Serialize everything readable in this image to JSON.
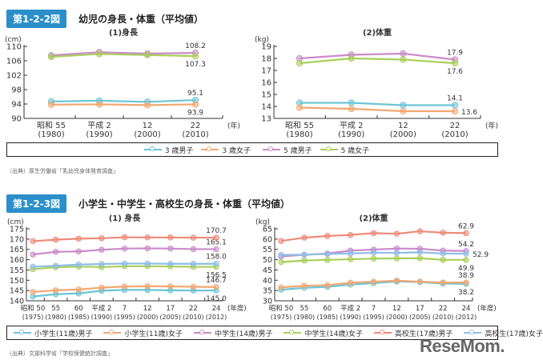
{
  "figure1": {
    "badge": "第1-2-2図",
    "title": "幼児の身長・体重（平均値）",
    "source": "（出典）厚生労働省「乳幼児身体発育調査」",
    "legend": [
      {
        "label": "3 歳男子",
        "color": "#6cc5d6"
      },
      {
        "label": "3 歳女子",
        "color": "#f2a872"
      },
      {
        "label": "5 歳男子",
        "color": "#c98bc9"
      },
      {
        "label": "5 歳女子",
        "color": "#a9cf5a"
      }
    ]
  },
  "figure2": {
    "badge": "第1-2-3図",
    "title": "小学生・中学生・高校生の身長・体重（平均値）",
    "source": "（出典）文部科学省「学校保健統計調査」",
    "legend": [
      {
        "label": "小学生(11歳)男子",
        "color": "#6cc5d6"
      },
      {
        "label": "小学生(11歳)女子",
        "color": "#f2a872"
      },
      {
        "label": "中学生(14歳)男子",
        "color": "#c98bc9"
      },
      {
        "label": "中学生(14歳)女子",
        "color": "#a9cf5a"
      },
      {
        "label": "高校生(17歳)男子",
        "color": "#ee8a78"
      },
      {
        "label": "高校生(17歳)女子",
        "color": "#8fbde6"
      }
    ]
  },
  "watermark": "ReseMom.",
  "chart_data": [
    {
      "id": "c1",
      "type": "line",
      "title": "(1)身長",
      "ylabel": "(cm)",
      "xunit": "(年)",
      "ylim": [
        90,
        110
      ],
      "yticks": [
        90,
        94,
        98,
        102,
        106,
        110
      ],
      "categories": [
        "昭和 55|(1980)",
        "平成 2|(1990)",
        "12|(2000)",
        "22|(2010)"
      ],
      "series": [
        {
          "name": "3 歳男子",
          "color": "#6cc5d6",
          "values": [
            94.7,
            94.9,
            94.6,
            95.1
          ],
          "label": "95.1",
          "labelPos": "above"
        },
        {
          "name": "3 歳女子",
          "color": "#f2a872",
          "values": [
            93.8,
            93.9,
            93.7,
            93.9
          ],
          "label": "93.9",
          "labelPos": "below"
        },
        {
          "name": "5 歳男子",
          "color": "#c98bc9",
          "values": [
            107.5,
            108.4,
            108.0,
            108.2
          ],
          "label": "108.2",
          "labelPos": "above"
        },
        {
          "name": "5 歳女子",
          "color": "#a9cf5a",
          "values": [
            107.1,
            107.9,
            107.6,
            107.3
          ],
          "label": "107.3",
          "labelPos": "below"
        }
      ]
    },
    {
      "id": "c2",
      "type": "line",
      "title": "(2)体重",
      "ylabel": "(kg)",
      "xunit": "(年)",
      "ylim": [
        13,
        19
      ],
      "yticks": [
        13,
        14,
        15,
        16,
        17,
        18,
        19
      ],
      "categories": [
        "昭和 55|(1980)",
        "平成 2|(1990)",
        "12|(2000)",
        "22|(2010)"
      ],
      "series": [
        {
          "name": "3 歳男子",
          "color": "#6cc5d6",
          "values": [
            14.3,
            14.3,
            14.1,
            14.1
          ],
          "label": "14.1",
          "labelPos": "above"
        },
        {
          "name": "3 歳女子",
          "color": "#f2a872",
          "values": [
            13.9,
            13.8,
            13.6,
            13.6
          ],
          "label": "13.6",
          "labelPos": "right"
        },
        {
          "name": "5 歳男子",
          "color": "#c98bc9",
          "values": [
            18.0,
            18.3,
            18.4,
            17.9
          ],
          "label": "17.9",
          "labelPos": "above"
        },
        {
          "name": "5 歳女子",
          "color": "#a9cf5a",
          "values": [
            17.6,
            18.0,
            17.9,
            17.6
          ],
          "label": "17.6",
          "labelPos": "below"
        }
      ]
    },
    {
      "id": "c3",
      "type": "line",
      "title": "(1) 身長",
      "ylabel": "(cm)",
      "xunit": "(年度)",
      "ylim": [
        140,
        175
      ],
      "yticks": [
        140,
        145,
        150,
        155,
        160,
        165,
        170,
        175
      ],
      "categories": [
        "昭和 50|(1975)",
        "55|(1980)",
        "60|(1985)",
        "平成 2|(1990)",
        "7|(1995)",
        "12|(2000)",
        "17|(2005)",
        "22|(2010)",
        "24|(2012)"
      ],
      "series": [
        {
          "name": "小学生(11歳)男子",
          "color": "#6cc5d6",
          "values": [
            142.1,
            143.2,
            143.6,
            144.9,
            145.3,
            145.3,
            145.1,
            145.0,
            145.0
          ],
          "label": "145.0",
          "labelPos": "below"
        },
        {
          "name": "小学生(11歳)女子",
          "color": "#f2a872",
          "values": [
            144.3,
            145.1,
            145.5,
            146.4,
            146.9,
            147.1,
            147.0,
            146.8,
            146.7
          ],
          "label": "146.7",
          "labelPos": "above"
        },
        {
          "name": "中学生(14歳)男子",
          "color": "#c98bc9",
          "values": [
            162.5,
            163.8,
            164.0,
            164.8,
            165.4,
            165.5,
            165.4,
            165.1,
            165.1
          ],
          "label": "165.1",
          "labelPos": "above"
        },
        {
          "name": "中学生(14歳)女子",
          "color": "#a9cf5a",
          "values": [
            155.4,
            156.3,
            156.6,
            156.4,
            156.8,
            156.8,
            156.7,
            156.5,
            156.5
          ],
          "label": "156.5",
          "labelPos": "below"
        },
        {
          "name": "高校生(17歳)男子",
          "color": "#ee8a78",
          "values": [
            169.0,
            169.7,
            170.2,
            170.4,
            170.9,
            170.8,
            170.8,
            170.7,
            170.7
          ],
          "label": "170.7",
          "labelPos": "above"
        },
        {
          "name": "高校生(17歳)女子",
          "color": "#8fbde6",
          "values": [
            156.6,
            157.0,
            157.6,
            157.9,
            158.1,
            158.1,
            158.0,
            158.0,
            158.0
          ],
          "label": "158.0",
          "labelPos": "above"
        }
      ]
    },
    {
      "id": "c4",
      "type": "line",
      "title": "(2)体重",
      "ylabel": "(kg)",
      "xunit": "(年度)",
      "ylim": [
        30,
        65
      ],
      "yticks": [
        30,
        35,
        40,
        45,
        50,
        55,
        60,
        65
      ],
      "categories": [
        "昭和 50|(1975)",
        "55|(1980)",
        "60|(1985)",
        "平成 2|(1990)",
        "7|(1995)",
        "12|(2000)",
        "17|(2005)",
        "22|(2010)",
        "24|(2012)"
      ],
      "series": [
        {
          "name": "小学生(11歳)男子",
          "color": "#6cc5d6",
          "values": [
            35.4,
            36.3,
            36.8,
            37.9,
            38.6,
            39.4,
            39.1,
            38.4,
            38.2
          ],
          "label": "38.2",
          "labelPos": "below"
        },
        {
          "name": "小学生(11歳)女子",
          "color": "#f2a872",
          "values": [
            36.5,
            37.3,
            37.6,
            38.8,
            39.3,
            39.8,
            39.3,
            38.9,
            38.9
          ],
          "label": "38.9",
          "labelPos": "above"
        },
        {
          "name": "中学生(14歳)男子",
          "color": "#c98bc9",
          "values": [
            51.5,
            52.4,
            53.0,
            54.4,
            54.9,
            55.4,
            55.3,
            54.4,
            54.2
          ],
          "label": "54.2",
          "labelPos": "above"
        },
        {
          "name": "中学生(14歳)女子",
          "color": "#a9cf5a",
          "values": [
            48.8,
            49.6,
            49.9,
            50.2,
            50.5,
            50.6,
            50.7,
            49.9,
            49.9
          ],
          "label": "49.9",
          "labelPos": "below"
        },
        {
          "name": "高校生(17歳)男子",
          "color": "#ee8a78",
          "values": [
            59.1,
            60.7,
            61.5,
            62.0,
            62.9,
            62.6,
            63.8,
            63.1,
            62.9
          ],
          "label": "62.9",
          "labelPos": "above"
        },
        {
          "name": "高校生(17歳)女子",
          "color": "#8fbde6",
          "values": [
            52.3,
            52.4,
            52.8,
            53.0,
            53.4,
            53.3,
            53.6,
            53.0,
            52.9
          ],
          "label": "52.9",
          "labelPos": "right"
        }
      ]
    }
  ]
}
